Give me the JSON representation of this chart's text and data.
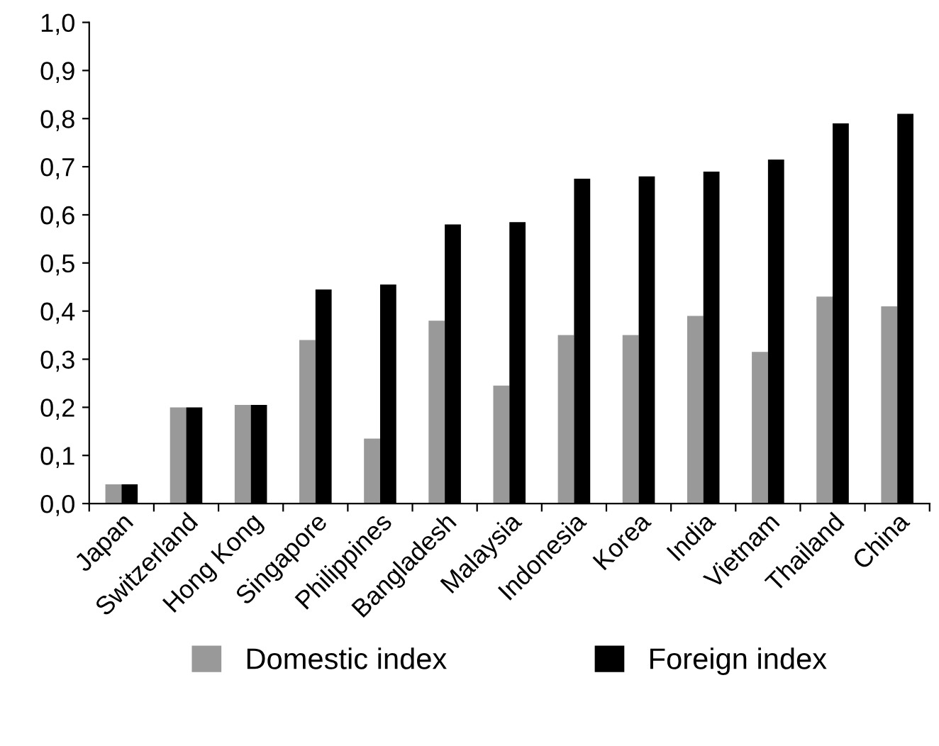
{
  "chart_data": {
    "type": "bar",
    "categories": [
      "Japan",
      "Switzerland",
      "Hong Kong",
      "Singapore",
      "Philippines",
      "Bangladesh",
      "Malaysia",
      "Indonesia",
      "Korea",
      "India",
      "Vietnam",
      "Thailand",
      "China"
    ],
    "series": [
      {
        "name": "Domestic index",
        "color": "#999999",
        "values": [
          0.04,
          0.2,
          0.205,
          0.34,
          0.135,
          0.38,
          0.245,
          0.35,
          0.35,
          0.39,
          0.315,
          0.43,
          0.41
        ]
      },
      {
        "name": "Foreign index",
        "color": "#000000",
        "values": [
          0.04,
          0.2,
          0.205,
          0.445,
          0.455,
          0.58,
          0.585,
          0.675,
          0.68,
          0.69,
          0.715,
          0.79,
          0.81
        ]
      }
    ],
    "ylim": [
      0,
      1
    ],
    "yticks": [
      {
        "value": 0,
        "label": "0,0"
      },
      {
        "value": 0.1,
        "label": "0,1"
      },
      {
        "value": 0.2,
        "label": "0,2"
      },
      {
        "value": 0.3,
        "label": "0,3"
      },
      {
        "value": 0.4,
        "label": "0,4"
      },
      {
        "value": 0.5,
        "label": "0,5"
      },
      {
        "value": 0.6,
        "label": "0,6"
      },
      {
        "value": 0.7,
        "label": "0,7"
      },
      {
        "value": 0.8,
        "label": "0,8"
      },
      {
        "value": 0.9,
        "label": "0,9"
      },
      {
        "value": 1,
        "label": "1,0"
      }
    ],
    "grid": false,
    "legend": "bottom"
  }
}
